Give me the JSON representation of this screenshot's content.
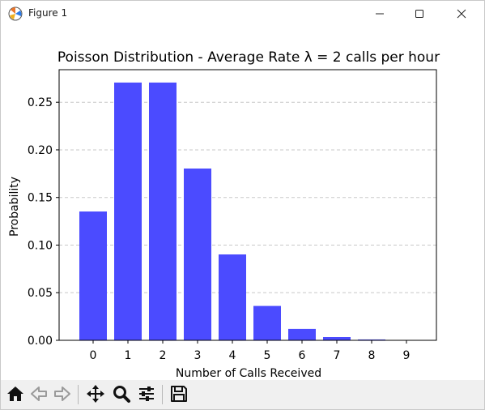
{
  "window": {
    "title": "Figure 1",
    "icons": [
      "matplotlib-figure-icon",
      "minimize-icon",
      "maximize-icon",
      "close-icon"
    ]
  },
  "toolbar": {
    "buttons": [
      "home-icon",
      "back-icon",
      "forward-icon",
      "pan-icon",
      "zoom-icon",
      "configure-subplots-icon",
      "save-icon"
    ]
  },
  "colors": {
    "bar": "#4b4bff",
    "grid": "#c8c8c8",
    "toolbar_bg": "#f0f0f0"
  },
  "chart_data": {
    "type": "bar",
    "title": "Poisson Distribution - Average Rate λ = 2 calls per hour",
    "xlabel": "Number of Calls Received",
    "ylabel": "Probability",
    "categories": [
      "0",
      "1",
      "2",
      "3",
      "4",
      "5",
      "6",
      "7",
      "8",
      "9"
    ],
    "values": [
      0.1353,
      0.2707,
      0.2707,
      0.1804,
      0.0902,
      0.0361,
      0.012,
      0.0034,
      0.0009,
      0.0002
    ],
    "ylim": [
      0,
      0.2842
    ],
    "yticks": [
      "0.00",
      "0.05",
      "0.10",
      "0.15",
      "0.20",
      "0.25"
    ],
    "ytick_values": [
      0,
      0.05,
      0.1,
      0.15,
      0.2,
      0.25
    ],
    "grid": "y-dashed",
    "legend": "none"
  }
}
